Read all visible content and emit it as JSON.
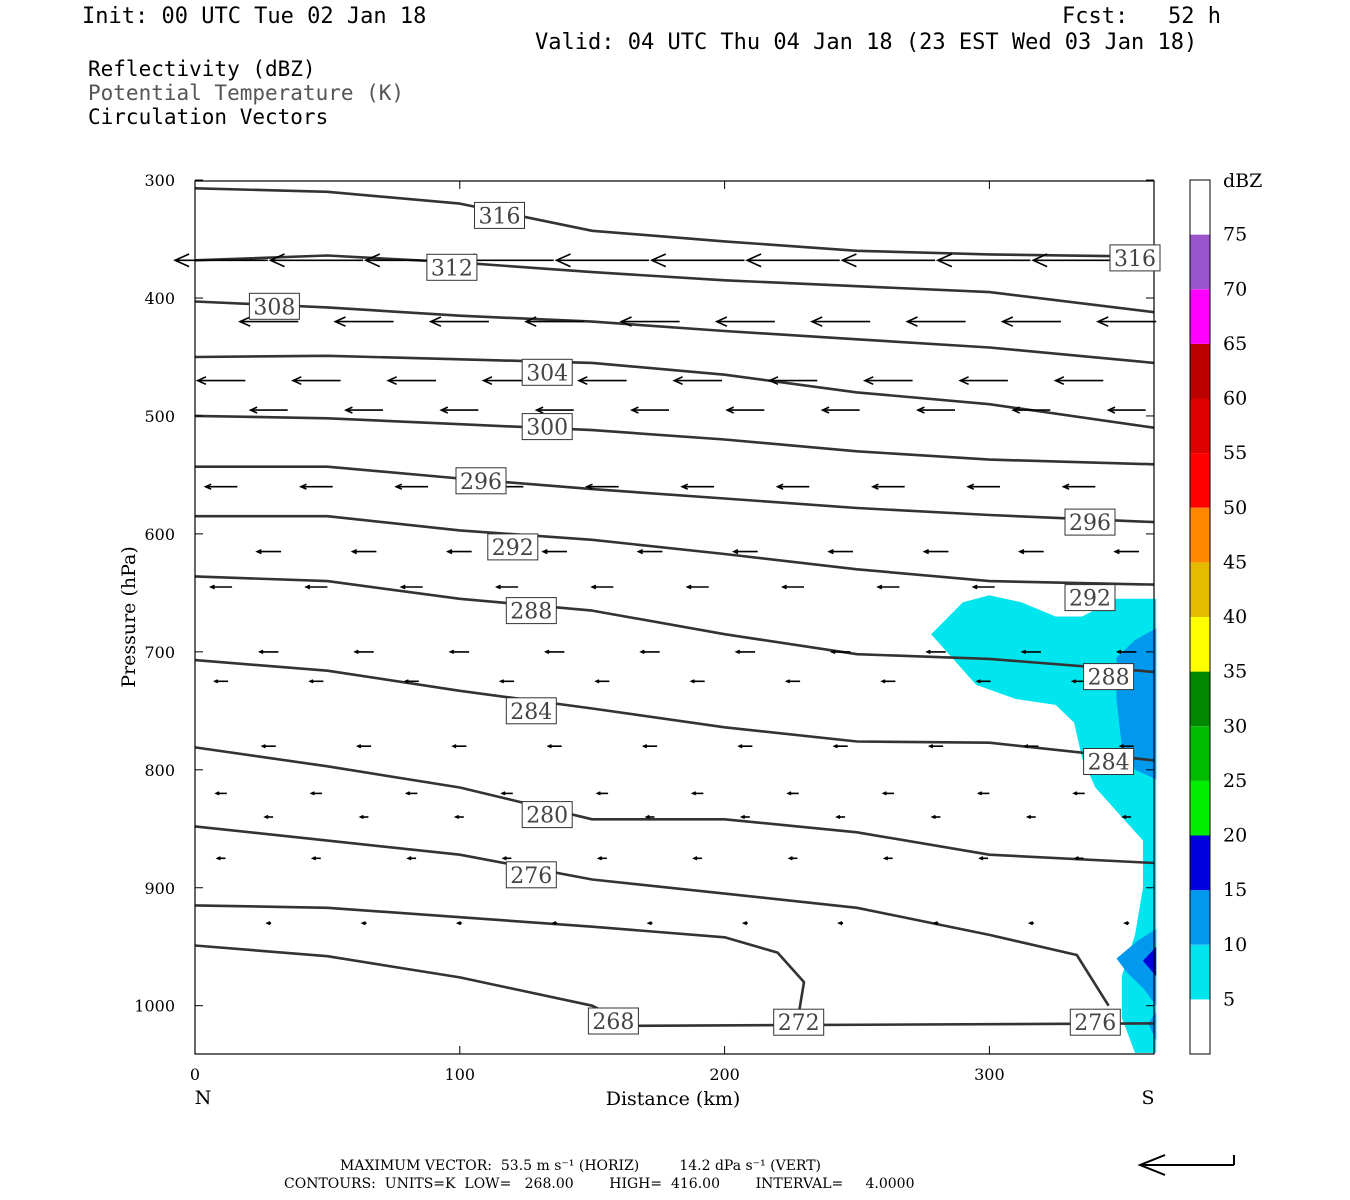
{
  "header": {
    "init": "Init: 00 UTC Tue 02 Jan 18",
    "fcst": "Fcst:   52 h",
    "valid": "Valid: 04 UTC Thu 04 Jan 18 (23 EST Wed 03 Jan 18)"
  },
  "legend_lines": {
    "reflectivity": "Reflectivity (dBZ)",
    "theta": "Potential Temperature (K)",
    "vectors": "Circulation Vectors"
  },
  "footer": {
    "max_vector": "MAXIMUM VECTOR:  53.5 m s⁻¹ (HORIZ)         14.2 dPa s⁻¹ (VERT)",
    "contours": "CONTOURS:  UNITS=K  LOW=   268.00        HIGH=  416.00        INTERVAL=     4.0000"
  },
  "chart_data": {
    "type": "cross-section",
    "xlabel": "Distance (km)",
    "ylabel": "Pressure (hPa)",
    "xlim": [
      0,
      363
    ],
    "ylim": [
      1040,
      300
    ],
    "x_ticks": [
      0,
      100,
      200,
      300
    ],
    "y_ticks": [
      300,
      400,
      500,
      600,
      700,
      800,
      900,
      1000
    ],
    "x_end_labels": [
      "N",
      "S"
    ],
    "colorbar": {
      "title": "dBZ",
      "labels": [
        5,
        10,
        15,
        20,
        25,
        30,
        35,
        40,
        45,
        50,
        55,
        60,
        65,
        70,
        75
      ],
      "colors": [
        "#ffffff",
        "#00e5ee",
        "#0099ee",
        "#0000dd",
        "#00ee00",
        "#00bb00",
        "#008800",
        "#ffff00",
        "#e5bb00",
        "#ff8800",
        "#ff0000",
        "#dd0000",
        "#bb0000",
        "#ff00ff",
        "#9955cc",
        "#ffffff"
      ]
    },
    "theta_contours": [
      {
        "label": "316",
        "points": [
          [
            0,
            307
          ],
          [
            50,
            310
          ],
          [
            100,
            320
          ],
          [
            150,
            343
          ],
          [
            200,
            352
          ],
          [
            250,
            360
          ],
          [
            300,
            363
          ],
          [
            363,
            365
          ]
        ],
        "label_positions": [
          [
            115,
            330
          ],
          [
            355,
            366
          ]
        ]
      },
      {
        "label": "312",
        "points": [
          [
            0,
            368
          ],
          [
            50,
            364
          ],
          [
            100,
            370
          ],
          [
            150,
            378
          ],
          [
            200,
            385
          ],
          [
            250,
            390
          ],
          [
            300,
            395
          ],
          [
            363,
            412
          ]
        ],
        "label_positions": [
          [
            97,
            374
          ]
        ]
      },
      {
        "label": "308",
        "points": [
          [
            0,
            403
          ],
          [
            50,
            408
          ],
          [
            100,
            415
          ],
          [
            150,
            420
          ],
          [
            200,
            428
          ],
          [
            250,
            435
          ],
          [
            300,
            442
          ],
          [
            363,
            455
          ]
        ],
        "label_positions": [
          [
            30,
            407
          ]
        ]
      },
      {
        "label": "304",
        "points": [
          [
            0,
            450
          ],
          [
            50,
            449
          ],
          [
            100,
            452
          ],
          [
            150,
            455
          ],
          [
            200,
            465
          ],
          [
            250,
            480
          ],
          [
            300,
            490
          ],
          [
            363,
            510
          ]
        ],
        "label_positions": [
          [
            133,
            463
          ]
        ]
      },
      {
        "label": "300",
        "points": [
          [
            0,
            500
          ],
          [
            50,
            502
          ],
          [
            100,
            507
          ],
          [
            150,
            512
          ],
          [
            200,
            520
          ],
          [
            250,
            530
          ],
          [
            300,
            537
          ],
          [
            363,
            541
          ]
        ],
        "label_positions": [
          [
            133,
            509
          ]
        ]
      },
      {
        "label": "296",
        "points": [
          [
            0,
            543
          ],
          [
            50,
            543
          ],
          [
            100,
            553
          ],
          [
            150,
            562
          ],
          [
            200,
            570
          ],
          [
            250,
            578
          ],
          [
            300,
            584
          ],
          [
            363,
            590
          ]
        ],
        "label_positions": [
          [
            108,
            555
          ],
          [
            338,
            590
          ]
        ]
      },
      {
        "label": "292",
        "points": [
          [
            0,
            585
          ],
          [
            50,
            585
          ],
          [
            100,
            597
          ],
          [
            150,
            605
          ],
          [
            200,
            617
          ],
          [
            250,
            630
          ],
          [
            300,
            640
          ],
          [
            363,
            643
          ]
        ],
        "label_positions": [
          [
            120,
            611
          ],
          [
            338,
            654
          ]
        ]
      },
      {
        "label": "288",
        "points": [
          [
            0,
            636
          ],
          [
            50,
            640
          ],
          [
            100,
            655
          ],
          [
            150,
            665
          ],
          [
            200,
            685
          ],
          [
            250,
            702
          ],
          [
            300,
            706
          ],
          [
            363,
            717
          ]
        ],
        "label_positions": [
          [
            127,
            665
          ],
          [
            345,
            721
          ]
        ]
      },
      {
        "label": "284",
        "points": [
          [
            0,
            707
          ],
          [
            50,
            716
          ],
          [
            100,
            733
          ],
          [
            150,
            748
          ],
          [
            200,
            764
          ],
          [
            250,
            776
          ],
          [
            300,
            777
          ],
          [
            363,
            792
          ]
        ],
        "label_positions": [
          [
            127,
            750
          ],
          [
            345,
            793
          ]
        ]
      },
      {
        "label": "280",
        "points": [
          [
            0,
            781
          ],
          [
            50,
            797
          ],
          [
            100,
            815
          ],
          [
            150,
            842
          ],
          [
            200,
            842
          ],
          [
            250,
            853
          ],
          [
            300,
            872
          ],
          [
            363,
            879
          ]
        ],
        "label_positions": [
          [
            133,
            838
          ]
        ]
      },
      {
        "label": "276",
        "points": [
          [
            0,
            848
          ],
          [
            50,
            860
          ],
          [
            100,
            872
          ],
          [
            150,
            893
          ],
          [
            200,
            905
          ],
          [
            250,
            917
          ],
          [
            300,
            940
          ],
          [
            333,
            957
          ],
          [
            345,
            1000
          ]
        ],
        "label_positions": [
          [
            127,
            889
          ],
          [
            340,
            1014
          ]
        ]
      },
      {
        "label": "272",
        "points": [
          [
            0,
            915
          ],
          [
            50,
            917
          ],
          [
            100,
            925
          ],
          [
            150,
            933
          ],
          [
            200,
            942
          ],
          [
            220,
            955
          ],
          [
            230,
            980
          ],
          [
            228,
            1007
          ]
        ],
        "label_positions": [
          [
            228,
            1014
          ]
        ]
      },
      {
        "label": "268",
        "points": [
          [
            0,
            949
          ],
          [
            50,
            958
          ],
          [
            100,
            976
          ],
          [
            150,
            1000
          ],
          [
            165,
            1017
          ],
          [
            363,
            1015
          ]
        ],
        "label_positions": [
          [
            158,
            1013
          ]
        ]
      }
    ],
    "reflectivity_regions": [
      {
        "dbz": 5,
        "note": "southern edge shallow echo extending from ~650 hPa to surface, 280-363 km"
      },
      {
        "dbz": 10,
        "note": "embedded core 340-363 km, ~710-840 hPa and near surface"
      },
      {
        "dbz": 15,
        "note": "small core near 358 km, ~963 hPa"
      }
    ],
    "vectors": "mostly easterly-to-westerly (pointing north) flow strongest aloft near 370-430 hPa, weakening toward surface"
  }
}
